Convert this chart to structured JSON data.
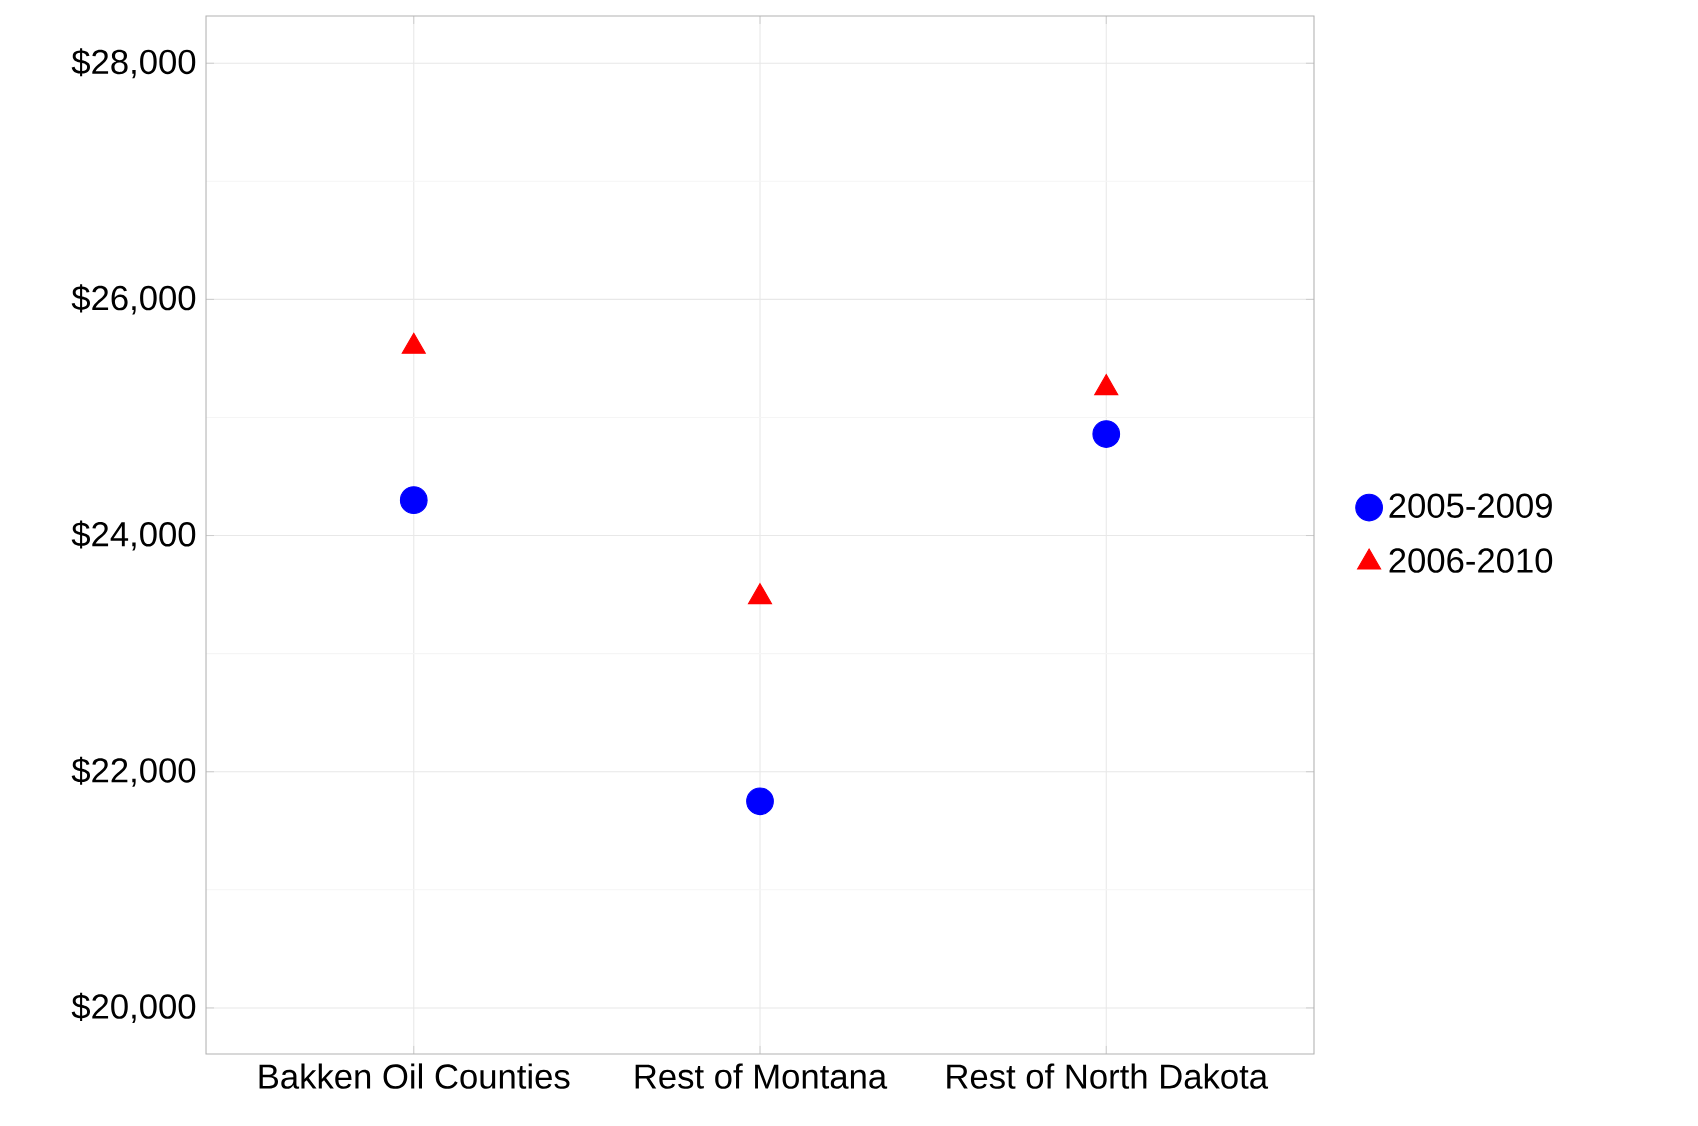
{
  "chart_data": {
    "type": "scatter",
    "categories": [
      "Bakken Oil Counties",
      "Rest of Montana",
      "Rest of North Dakota"
    ],
    "series": [
      {
        "name": "2005-2009",
        "color": "#0000ff",
        "marker": "circle",
        "values": [
          24300,
          21750,
          24860
        ]
      },
      {
        "name": "2006-2010",
        "color": "#ff0000",
        "marker": "triangle",
        "values": [
          25600,
          23480,
          25250
        ]
      }
    ],
    "ylim": [
      19610,
      28400
    ],
    "yticks": [
      {
        "value": 20000,
        "label": "$20,000"
      },
      {
        "value": 22000,
        "label": "$22,000"
      },
      {
        "value": 24000,
        "label": "$24,000"
      },
      {
        "value": 26000,
        "label": "$26,000"
      },
      {
        "value": 28000,
        "label": "$28,000"
      }
    ],
    "grid": true,
    "legend": "right"
  }
}
